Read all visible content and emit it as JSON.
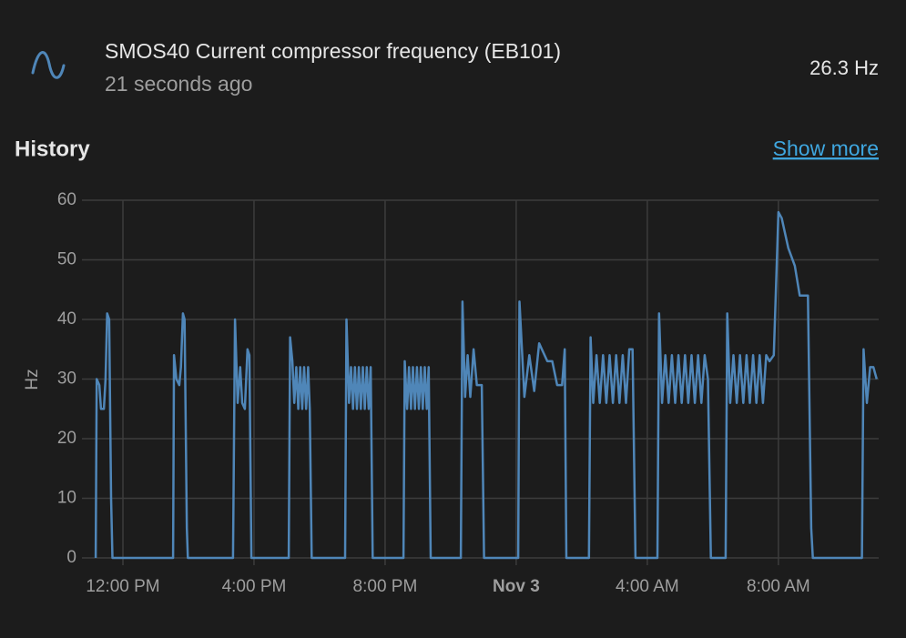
{
  "header": {
    "title": "SMOS40 Current compressor frequency (EB101)",
    "subtitle": "21 seconds ago",
    "state": "26.3 Hz"
  },
  "history": {
    "title": "History",
    "link": "Show more"
  },
  "chart_data": {
    "type": "line",
    "ylabel": "Hz",
    "color": "#4f86b8",
    "grid": true,
    "ylim": [
      0,
      60
    ],
    "yticks": [
      0,
      10,
      20,
      30,
      40,
      50,
      60
    ],
    "xlim": [
      10.75,
      35.06
    ],
    "xticks": [
      {
        "value": 12,
        "label": "12:00 PM"
      },
      {
        "value": 16,
        "label": "4:00 PM"
      },
      {
        "value": 20,
        "label": "8:00 PM"
      },
      {
        "value": 24,
        "label": "Nov 3"
      },
      {
        "value": 28,
        "label": "4:00 AM"
      },
      {
        "value": 32,
        "label": "8:00 AM"
      }
    ],
    "x": [
      11.17,
      11.2,
      11.28,
      11.33,
      11.42,
      11.47,
      11.52,
      11.58,
      11.64,
      11.68,
      13.53,
      13.56,
      13.63,
      13.72,
      13.77,
      13.83,
      13.88,
      13.95,
      13.98,
      15.36,
      15.42,
      15.5,
      15.58,
      15.64,
      15.72,
      15.8,
      15.86,
      15.92,
      17.06,
      17.1,
      17.17,
      17.23,
      17.29,
      17.35,
      17.41,
      17.47,
      17.53,
      17.59,
      17.65,
      17.7,
      17.76,
      18.78,
      18.82,
      18.9,
      18.96,
      19.02,
      19.08,
      19.14,
      19.2,
      19.26,
      19.32,
      19.38,
      19.44,
      19.5,
      19.56,
      19.62,
      20.56,
      20.6,
      20.67,
      20.73,
      20.79,
      20.85,
      20.91,
      20.97,
      21.03,
      21.09,
      21.15,
      21.21,
      21.27,
      21.33,
      21.39,
      22.31,
      22.36,
      22.44,
      22.52,
      22.6,
      22.7,
      22.8,
      22.95,
      23.02,
      24.06,
      24.1,
      24.25,
      24.4,
      24.55,
      24.7,
      24.95,
      25.1,
      25.25,
      25.4,
      25.48,
      25.53,
      26.22,
      26.27,
      26.35,
      26.45,
      26.55,
      26.65,
      26.75,
      26.85,
      26.95,
      27.05,
      27.15,
      27.25,
      27.35,
      27.45,
      27.55,
      27.64,
      28.31,
      28.36,
      28.45,
      28.55,
      28.65,
      28.75,
      28.85,
      28.95,
      29.05,
      29.15,
      29.25,
      29.35,
      29.45,
      29.55,
      29.65,
      29.75,
      29.85,
      29.94,
      30.39,
      30.44,
      30.53,
      30.63,
      30.73,
      30.83,
      30.93,
      31.03,
      31.13,
      31.23,
      31.33,
      31.43,
      31.53,
      31.63,
      31.73,
      31.86,
      32.0,
      32.1,
      32.3,
      32.5,
      32.65,
      32.9,
      33.0,
      33.05,
      34.55,
      34.6,
      34.7,
      34.8,
      34.9,
      35.0
    ],
    "values": [
      0,
      30,
      29,
      25,
      25,
      30,
      41,
      40,
      10,
      0,
      0,
      34,
      30,
      29,
      32,
      41,
      40,
      5,
      0,
      0,
      40,
      26,
      32,
      26,
      25,
      35,
      34,
      0,
      0,
      37,
      33,
      26,
      32,
      25,
      32,
      25,
      32,
      25,
      32,
      25,
      0,
      0,
      40,
      26,
      32,
      25,
      32,
      25,
      32,
      25,
      32,
      25,
      32,
      25,
      32,
      0,
      0,
      33,
      25,
      32,
      25,
      32,
      25,
      32,
      25,
      32,
      25,
      32,
      25,
      32,
      0,
      0,
      43,
      27,
      34,
      27,
      35,
      29,
      29,
      0,
      0,
      43,
      27,
      34,
      28,
      36,
      33,
      33,
      29,
      29,
      35,
      0,
      0,
      37,
      26,
      34,
      26,
      34,
      26,
      34,
      26,
      34,
      26,
      34,
      26,
      35,
      35,
      0,
      0,
      41,
      26,
      34,
      26,
      34,
      26,
      34,
      26,
      34,
      26,
      34,
      26,
      34,
      26,
      34,
      30,
      0,
      0,
      41,
      26,
      34,
      26,
      34,
      26,
      34,
      26,
      34,
      26,
      34,
      26,
      34,
      33,
      34,
      58,
      57,
      52,
      49,
      44,
      44,
      5,
      0,
      0,
      35,
      26,
      32,
      32,
      30
    ]
  }
}
